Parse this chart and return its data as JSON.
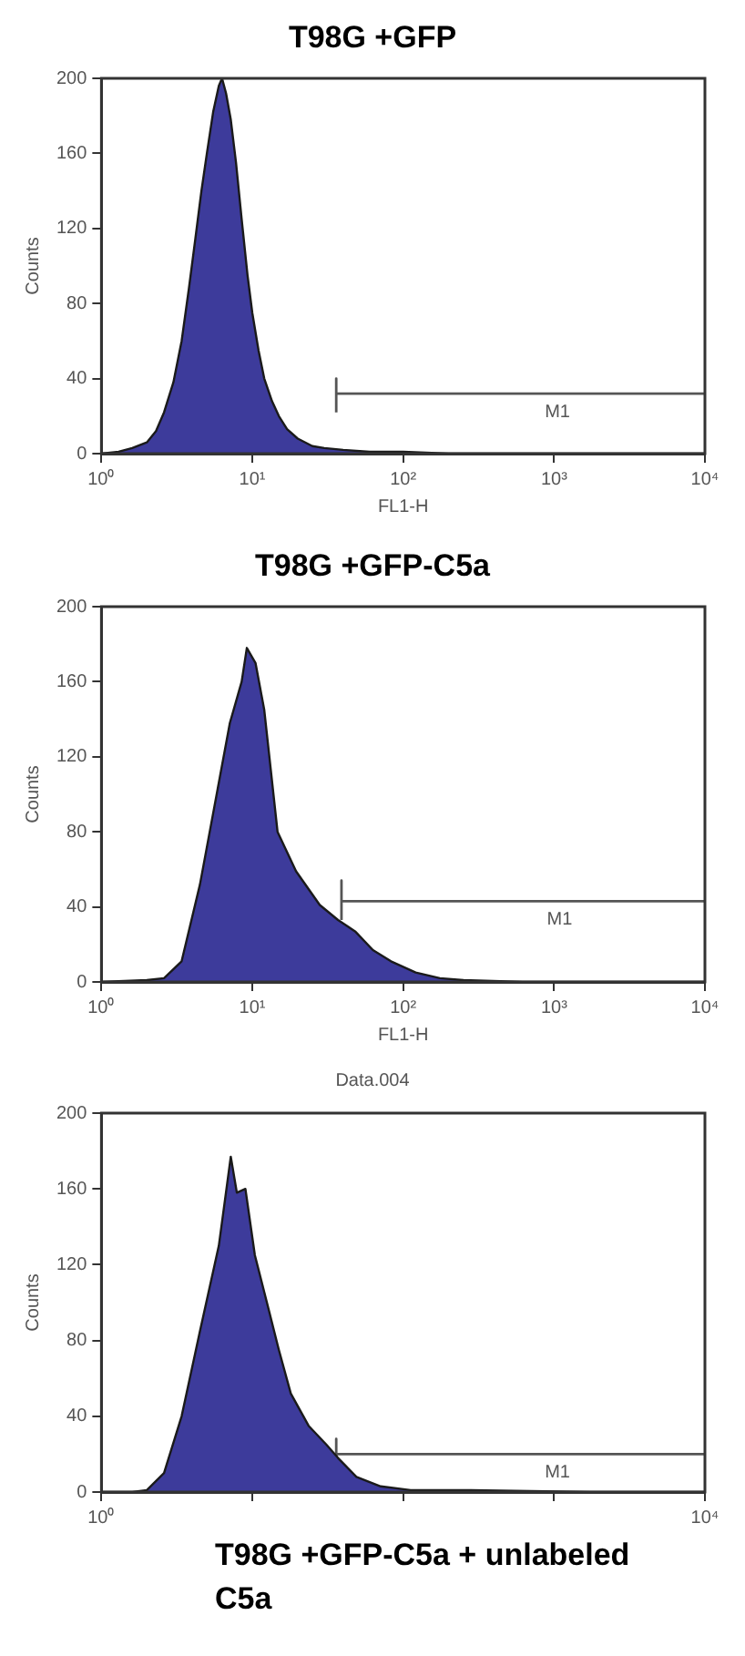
{
  "chart_data": [
    {
      "type": "area",
      "title": "T98G +GFP",
      "xlabel": "FL1-H",
      "ylabel": "Counts",
      "log": "x",
      "grid": false,
      "legend": false,
      "series": [
        {
          "color": "#3d3b9b",
          "x": [
            1,
            1.3,
            1.6,
            2,
            2.3,
            2.6,
            3,
            3.4,
            3.8,
            4.2,
            4.6,
            5,
            5.5,
            6,
            6.3,
            6.7,
            7.2,
            7.8,
            8.5,
            9.3,
            10,
            11,
            12,
            13.5,
            15,
            17,
            20,
            25,
            30,
            40,
            60,
            100,
            200,
            10000
          ],
          "values": [
            0,
            1,
            3,
            6,
            12,
            22,
            38,
            60,
            88,
            115,
            140,
            160,
            182,
            196,
            200,
            192,
            178,
            155,
            125,
            95,
            75,
            55,
            40,
            28,
            20,
            13,
            8,
            4,
            3,
            2,
            1,
            1,
            0,
            0
          ]
        },
        {
          "type": "line",
          "name": "M1",
          "color": "#555555",
          "x": [
            36,
            36,
            36,
            10000
          ],
          "values": [
            22,
            40,
            32,
            32
          ]
        }
      ],
      "xlim": [
        1,
        10000
      ],
      "xticks": [
        {
          "value": 1,
          "label": "10⁰"
        },
        {
          "value": 10,
          "label": "10¹"
        },
        {
          "value": 100,
          "label": "10²"
        },
        {
          "value": 1000,
          "label": "10³"
        },
        {
          "value": 10000,
          "label": "10⁴"
        }
      ],
      "ylim": [
        0,
        200
      ],
      "yticks": [
        0,
        40,
        80,
        120,
        160,
        200
      ]
    },
    {
      "type": "area",
      "title": "T98G +GFP-C5a",
      "xlabel": "FL1-H",
      "ylabel": "Counts",
      "log": "x",
      "grid": false,
      "legend": false,
      "series": [
        {
          "color": "#3d3b9b",
          "x": [
            1,
            2,
            2.6,
            3.4,
            4.5,
            5.9,
            7.1,
            8.5,
            9.2,
            10.5,
            12,
            14.7,
            19.5,
            28,
            37,
            48,
            63,
            83,
            121,
            175,
            250,
            620,
            10000
          ],
          "values": [
            0,
            1,
            2,
            11,
            52,
            103,
            138,
            160,
            178,
            170,
            145,
            80,
            59,
            41,
            33,
            27,
            17,
            11,
            5,
            2,
            1,
            0,
            0
          ]
        },
        {
          "type": "line",
          "name": "M1",
          "color": "#555555",
          "x": [
            39,
            39,
            39,
            10000
          ],
          "values": [
            33,
            54,
            43,
            43
          ]
        }
      ],
      "xlim": [
        1,
        10000
      ],
      "xticks": [
        {
          "value": 1,
          "label": "10⁰"
        },
        {
          "value": 10,
          "label": "10¹"
        },
        {
          "value": 100,
          "label": "10²"
        },
        {
          "value": 1000,
          "label": "10³"
        },
        {
          "value": 10000,
          "label": "10⁴"
        }
      ],
      "ylim": [
        0,
        200
      ],
      "yticks": [
        0,
        40,
        80,
        120,
        160,
        200
      ]
    },
    {
      "type": "area",
      "subtitle": "Data.004",
      "annotations": [
        "T98G +GFP-C5a + unlabeled C5a"
      ],
      "ylabel": "Counts",
      "log": "x",
      "grid": false,
      "legend": false,
      "series": [
        {
          "color": "#3d3b9b",
          "x": [
            1,
            1.6,
            2,
            2.6,
            3.4,
            4.5,
            6,
            7.2,
            7.9,
            9,
            10.4,
            12.5,
            15,
            18,
            23.6,
            31,
            37,
            49,
            71,
            112,
            280,
            1750,
            10000
          ],
          "values": [
            0,
            0,
            1,
            10,
            40,
            85,
            130,
            177,
            158,
            160,
            125,
            100,
            75,
            52,
            35,
            25,
            18,
            8,
            3,
            1,
            1,
            0,
            0
          ]
        },
        {
          "type": "line",
          "name": "M1",
          "color": "#555555",
          "x": [
            36,
            36,
            36,
            10000
          ],
          "values": [
            16,
            28,
            20,
            20
          ]
        }
      ],
      "xlim": [
        1,
        10000
      ],
      "xticks": [
        {
          "value": 1,
          "label": "10⁰"
        },
        {
          "value": 10,
          "label": null
        },
        {
          "value": 100,
          "label": null
        },
        {
          "value": 1000,
          "label": null
        },
        {
          "value": 10000,
          "label": "10⁴"
        }
      ],
      "ylim": [
        0,
        200
      ],
      "yticks": [
        0,
        40,
        80,
        120,
        160,
        200
      ]
    }
  ]
}
